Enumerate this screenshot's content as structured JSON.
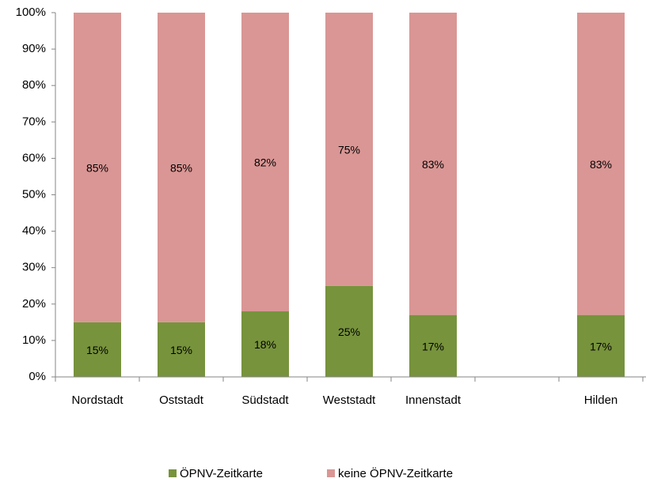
{
  "chart_data": {
    "type": "stacked_bar",
    "categories": [
      "Nordstadt",
      "Oststadt",
      "Südstadt",
      "Weststadt",
      "Innenstadt",
      null,
      "Hilden"
    ],
    "series": [
      {
        "name": "ÖPNV-Zeitkarte",
        "color": "#77933c",
        "values": [
          15,
          15,
          18,
          25,
          17,
          null,
          17
        ],
        "value_labels": [
          "15%",
          "15%",
          "18%",
          "25%",
          "17%",
          null,
          "17%"
        ]
      },
      {
        "name": "keine ÖPNV-Zeitkarte",
        "color": "#d99694",
        "values": [
          85,
          85,
          82,
          75,
          83,
          null,
          83
        ],
        "value_labels": [
          "85%",
          "85%",
          "82%",
          "75%",
          "83%",
          null,
          "83%"
        ]
      }
    ],
    "ylim": [
      0,
      100
    ],
    "yticks": [
      {
        "value": 0,
        "label": "0%"
      },
      {
        "value": 10,
        "label": "10%"
      },
      {
        "value": 20,
        "label": "20%"
      },
      {
        "value": 30,
        "label": "30%"
      },
      {
        "value": 40,
        "label": "40%"
      },
      {
        "value": 50,
        "label": "50%"
      },
      {
        "value": 60,
        "label": "60%"
      },
      {
        "value": 70,
        "label": "70%"
      },
      {
        "value": 80,
        "label": "80%"
      },
      {
        "value": 90,
        "label": "90%"
      },
      {
        "value": 100,
        "label": "100%"
      }
    ],
    "legend": "bottom"
  }
}
